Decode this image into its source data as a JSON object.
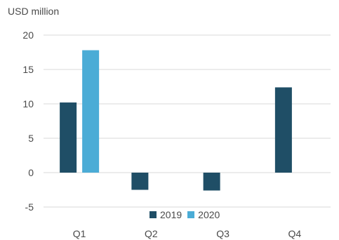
{
  "chart_data": {
    "type": "bar",
    "unit_label": "USD million",
    "categories": [
      "Q1",
      "Q2",
      "Q3",
      "Q4"
    ],
    "series": [
      {
        "name": "2019",
        "color": "#1f4e66",
        "values": [
          10.2,
          -2.5,
          -2.6,
          12.4
        ]
      },
      {
        "name": "2020",
        "color": "#4bacd6",
        "values": [
          17.8,
          null,
          null,
          null
        ]
      }
    ],
    "ylim": [
      -5,
      20
    ],
    "yticks": [
      -5,
      0,
      5,
      10,
      15,
      20
    ],
    "grid": true,
    "legend_position": "bottom-center"
  }
}
